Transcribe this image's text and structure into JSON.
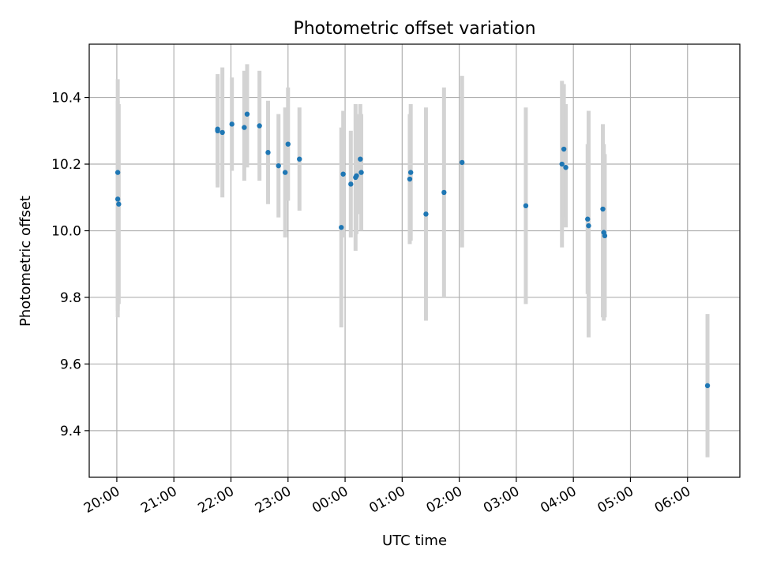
{
  "chart_data": {
    "type": "scatter",
    "title": "Photometric offset variation",
    "xlabel": "UTC time",
    "ylabel": "Photometric offset",
    "grid": true,
    "x_unit": "minutes",
    "x_ticks": [
      {
        "label": "20:00",
        "value": 0
      },
      {
        "label": "21:00",
        "value": 60
      },
      {
        "label": "22:00",
        "value": 120
      },
      {
        "label": "23:00",
        "value": 180
      },
      {
        "label": "00:00",
        "value": 240
      },
      {
        "label": "01:00",
        "value": 300
      },
      {
        "label": "02:00",
        "value": 360
      },
      {
        "label": "03:00",
        "value": 420
      },
      {
        "label": "04:00",
        "value": 480
      },
      {
        "label": "05:00",
        "value": 540
      },
      {
        "label": "06:00",
        "value": 600
      }
    ],
    "y_ticks": [
      9.4,
      9.6,
      9.8,
      10.0,
      10.2,
      10.4
    ],
    "xlim": [
      -29,
      655
    ],
    "ylim": [
      9.26,
      10.56
    ],
    "colors": {
      "point": "#1f77b4",
      "errorbar": "#d3d3d3",
      "grid": "#b0b0b0"
    },
    "points": [
      {
        "t": 1,
        "y": 10.095,
        "err_low": 9.74,
        "err_high": 10.455
      },
      {
        "t": 1,
        "y": 10.175,
        "err_low": 9.76,
        "err_high": 10.39
      },
      {
        "t": 2,
        "y": 10.08,
        "err_low": 9.78,
        "err_high": 10.38
      },
      {
        "t": 106,
        "y": 10.305,
        "err_low": 10.14,
        "err_high": 10.47
      },
      {
        "t": 106,
        "y": 10.3,
        "err_low": 10.13,
        "err_high": 10.46
      },
      {
        "t": 111,
        "y": 10.295,
        "err_low": 10.1,
        "err_high": 10.49
      },
      {
        "t": 121,
        "y": 10.32,
        "err_low": 10.18,
        "err_high": 10.46
      },
      {
        "t": 134,
        "y": 10.31,
        "err_low": 10.15,
        "err_high": 10.48
      },
      {
        "t": 137,
        "y": 10.35,
        "err_low": 10.19,
        "err_high": 10.5
      },
      {
        "t": 150,
        "y": 10.315,
        "err_low": 10.15,
        "err_high": 10.48
      },
      {
        "t": 159,
        "y": 10.235,
        "err_low": 10.08,
        "err_high": 10.39
      },
      {
        "t": 170,
        "y": 10.195,
        "err_low": 10.04,
        "err_high": 10.35
      },
      {
        "t": 177,
        "y": 10.175,
        "err_low": 9.98,
        "err_high": 10.37
      },
      {
        "t": 180,
        "y": 10.26,
        "err_low": 10.09,
        "err_high": 10.43
      },
      {
        "t": 192,
        "y": 10.215,
        "err_low": 10.06,
        "err_high": 10.37
      },
      {
        "t": 236,
        "y": 10.01,
        "err_low": 9.71,
        "err_high": 10.31
      },
      {
        "t": 238,
        "y": 10.17,
        "err_low": 9.98,
        "err_high": 10.36
      },
      {
        "t": 246,
        "y": 10.14,
        "err_low": 9.98,
        "err_high": 10.3
      },
      {
        "t": 251,
        "y": 10.16,
        "err_low": 9.94,
        "err_high": 10.38
      },
      {
        "t": 252,
        "y": 10.165,
        "err_low": 9.99,
        "err_high": 10.35
      },
      {
        "t": 256,
        "y": 10.215,
        "err_low": 10.05,
        "err_high": 10.38
      },
      {
        "t": 257,
        "y": 10.175,
        "err_low": 10.0,
        "err_high": 10.35
      },
      {
        "t": 308,
        "y": 10.155,
        "err_low": 9.96,
        "err_high": 10.35
      },
      {
        "t": 309,
        "y": 10.175,
        "err_low": 9.97,
        "err_high": 10.38
      },
      {
        "t": 325,
        "y": 10.05,
        "err_low": 9.73,
        "err_high": 10.37
      },
      {
        "t": 344,
        "y": 10.115,
        "err_low": 9.8,
        "err_high": 10.43
      },
      {
        "t": 363,
        "y": 10.205,
        "err_low": 9.95,
        "err_high": 10.465
      },
      {
        "t": 430,
        "y": 10.075,
        "err_low": 9.78,
        "err_high": 10.37
      },
      {
        "t": 468,
        "y": 10.2,
        "err_low": 9.95,
        "err_high": 10.45
      },
      {
        "t": 470,
        "y": 10.245,
        "err_low": 10.04,
        "err_high": 10.44
      },
      {
        "t": 472,
        "y": 10.19,
        "err_low": 10.01,
        "err_high": 10.38
      },
      {
        "t": 495,
        "y": 10.035,
        "err_low": 9.81,
        "err_high": 10.26
      },
      {
        "t": 496,
        "y": 10.015,
        "err_low": 9.68,
        "err_high": 10.36
      },
      {
        "t": 511,
        "y": 10.065,
        "err_low": 9.74,
        "err_high": 10.32
      },
      {
        "t": 512,
        "y": 9.995,
        "err_low": 9.73,
        "err_high": 10.26
      },
      {
        "t": 513,
        "y": 9.985,
        "err_low": 9.74,
        "err_high": 10.23
      },
      {
        "t": 621,
        "y": 9.535,
        "err_low": 9.32,
        "err_high": 9.75
      }
    ]
  }
}
